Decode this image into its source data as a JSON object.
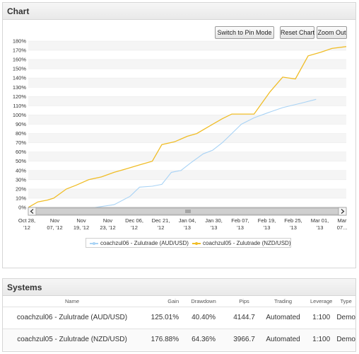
{
  "chart_panel": {
    "title": "Chart",
    "buttons": {
      "pin_mode": "Switch to Pin Mode",
      "reset": "Reset Chart",
      "zoom_out": "Zoom Out"
    }
  },
  "chart_data": {
    "type": "line",
    "title": "",
    "xlabel": "",
    "ylabel": "",
    "ylim": [
      0,
      180
    ],
    "y_ticks": [
      "0%",
      "10%",
      "20%",
      "30%",
      "40%",
      "50%",
      "60%",
      "70%",
      "80%",
      "90%",
      "100%",
      "110%",
      "120%",
      "130%",
      "140%",
      "150%",
      "160%",
      "170%",
      "180%"
    ],
    "x_ticks": [
      {
        "line1": "Oct 28,",
        "line2": "'12"
      },
      {
        "line1": "Nov",
        "line2": "07, '12"
      },
      {
        "line1": "Nov",
        "line2": "19, '12"
      },
      {
        "line1": "Nov",
        "line2": "23, '12"
      },
      {
        "line1": "Dec 06,",
        "line2": "'12"
      },
      {
        "line1": "Dec 21,",
        "line2": "'12"
      },
      {
        "line1": "Jan 04,",
        "line2": "'13"
      },
      {
        "line1": "Jan 30,",
        "line2": "'13"
      },
      {
        "line1": "Feb 07,",
        "line2": "'13"
      },
      {
        "line1": "Feb 19,",
        "line2": "'13"
      },
      {
        "line1": "Feb 25,",
        "line2": "'13"
      },
      {
        "line1": "Mar 01,",
        "line2": "'13"
      },
      {
        "line1": "Mar",
        "line2": "07..."
      }
    ],
    "grid": true,
    "legend_position": "bottom",
    "series": [
      {
        "name": "coachzul06 - Zulutrade (AUD/USD)",
        "color": "#a9d3f5",
        "points": [
          [
            0.0,
            -6
          ],
          [
            0.07,
            -3
          ],
          [
            0.14,
            -2
          ],
          [
            0.21,
            0
          ],
          [
            0.27,
            3
          ],
          [
            0.32,
            12
          ],
          [
            0.35,
            22
          ],
          [
            0.39,
            23
          ],
          [
            0.42,
            25
          ],
          [
            0.45,
            38
          ],
          [
            0.48,
            40
          ],
          [
            0.51,
            48
          ],
          [
            0.55,
            58
          ],
          [
            0.58,
            62
          ],
          [
            0.61,
            70
          ],
          [
            0.64,
            80
          ],
          [
            0.67,
            90
          ],
          [
            0.71,
            97
          ],
          [
            0.75,
            102
          ],
          [
            0.8,
            108
          ],
          [
            0.86,
            113
          ],
          [
            0.905,
            117
          ]
        ]
      },
      {
        "name": "coachzul05 - Zulutrade (NZD/USD)",
        "color": "#f0bd27",
        "points": [
          [
            0.0,
            0
          ],
          [
            0.03,
            6
          ],
          [
            0.06,
            8
          ],
          [
            0.08,
            10
          ],
          [
            0.12,
            20
          ],
          [
            0.15,
            24
          ],
          [
            0.19,
            30
          ],
          [
            0.23,
            33
          ],
          [
            0.27,
            38
          ],
          [
            0.31,
            42
          ],
          [
            0.35,
            46
          ],
          [
            0.39,
            50
          ],
          [
            0.42,
            68
          ],
          [
            0.46,
            71
          ],
          [
            0.5,
            77
          ],
          [
            0.53,
            80
          ],
          [
            0.57,
            88
          ],
          [
            0.61,
            96
          ],
          [
            0.64,
            101
          ],
          [
            0.68,
            101
          ],
          [
            0.71,
            101
          ],
          [
            0.76,
            125
          ],
          [
            0.8,
            141
          ],
          [
            0.84,
            139
          ],
          [
            0.88,
            164
          ],
          [
            0.92,
            168
          ],
          [
            0.955,
            172
          ],
          [
            1.0,
            174
          ]
        ]
      }
    ]
  },
  "systems_panel": {
    "title": "Systems",
    "columns": [
      "Name",
      "Gain",
      "Drawdown",
      "Pips",
      "Trading",
      "Leverage",
      "Type"
    ],
    "rows": [
      {
        "name": "coachzul06 - Zulutrade (AUD/USD)",
        "gain": "125.01%",
        "drawdown": "40.40%",
        "pips": "4144.7",
        "trading": "Automated",
        "leverage": "1:100",
        "type": "Demo"
      },
      {
        "name": "coachzul05 - Zulutrade (NZD/USD)",
        "gain": "176.88%",
        "drawdown": "64.36%",
        "pips": "3966.7",
        "trading": "Automated",
        "leverage": "1:100",
        "type": "Demo"
      }
    ]
  },
  "colors": {
    "gain_green": "#2e9e3e",
    "grid_band": "#f5f5f5"
  }
}
